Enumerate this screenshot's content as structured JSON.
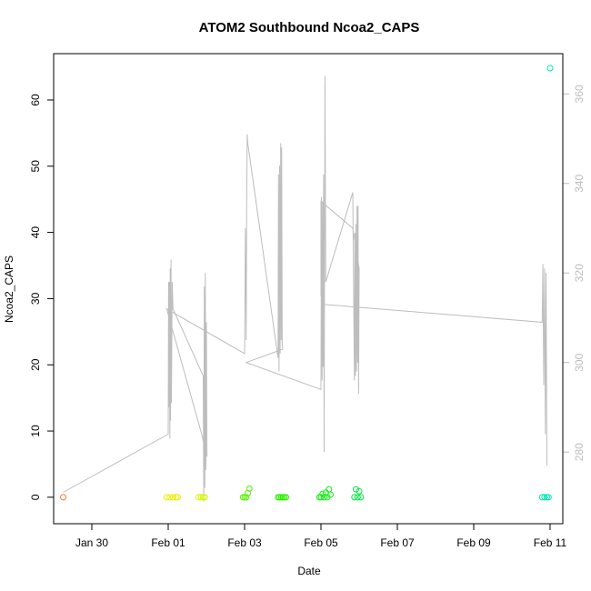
{
  "chart_data": {
    "type": "scatter",
    "title": "ATOM2 Southbound Ncoa2_CAPS",
    "xlabel": "Date",
    "ylabel": "Ncoa2_CAPS",
    "x_ticks": [
      "Jan 30",
      "Feb 01",
      "Feb 03",
      "Feb 05",
      "Feb 07",
      "Feb 09",
      "Feb 11"
    ],
    "y_ticks": [
      0,
      10,
      20,
      30,
      40,
      50,
      60
    ],
    "y2_ticks": [
      280,
      300,
      320,
      340,
      360
    ],
    "xlim": [
      "2024-01-29T00:00",
      "2024-02-11T08:00"
    ],
    "ylim": [
      -4,
      67
    ],
    "y2lim": [
      264,
      369
    ],
    "grid": false,
    "scatter_series": [
      {
        "color": "#f07a2a",
        "points": [
          [
            "2024-01-29T06:00",
            0
          ]
        ]
      },
      {
        "color": "#e8f000",
        "points": [
          [
            "2024-01-31T23:00",
            0
          ],
          [
            "2024-02-01T01:00",
            0
          ],
          [
            "2024-02-01T03:00",
            0
          ],
          [
            "2024-02-01T05:00",
            0
          ],
          [
            "2024-02-01T06:00",
            0
          ]
        ]
      },
      {
        "color": "#d8f500",
        "points": [
          [
            "2024-02-01T19:00",
            0
          ],
          [
            "2024-02-01T20:30",
            0
          ],
          [
            "2024-02-01T22:00",
            0
          ],
          [
            "2024-02-01T23:00",
            0
          ]
        ]
      },
      {
        "color": "#54f000",
        "points": [
          [
            "2024-02-02T23:00",
            0
          ],
          [
            "2024-02-03T00:00",
            0
          ],
          [
            "2024-02-03T01:00",
            0
          ],
          [
            "2024-02-03T02:00",
            0.6
          ],
          [
            "2024-02-03T03:00",
            1.3
          ]
        ]
      },
      {
        "color": "#2cf000",
        "points": [
          [
            "2024-02-03T21:00",
            0
          ],
          [
            "2024-02-03T22:00",
            0
          ],
          [
            "2024-02-03T23:00",
            0
          ],
          [
            "2024-02-04T00:00",
            0
          ],
          [
            "2024-02-04T01:00",
            0
          ],
          [
            "2024-02-04T02:00",
            0
          ]
        ]
      },
      {
        "color": "#10f010",
        "points": [
          [
            "2024-02-04T23:00",
            0
          ],
          [
            "2024-02-05T00:00",
            0
          ],
          [
            "2024-02-05T01:00",
            0.5
          ],
          [
            "2024-02-05T02:00",
            0
          ],
          [
            "2024-02-05T03:00",
            0.7
          ],
          [
            "2024-02-05T04:00",
            0
          ],
          [
            "2024-02-05T05:00",
            1.2
          ],
          [
            "2024-02-05T06:00",
            0.4
          ]
        ]
      },
      {
        "color": "#00e840",
        "points": [
          [
            "2024-02-05T21:00",
            0
          ],
          [
            "2024-02-05T22:00",
            1.2
          ],
          [
            "2024-02-05T23:00",
            0
          ],
          [
            "2024-02-06T00:00",
            0.9
          ],
          [
            "2024-02-06T01:00",
            0
          ]
        ]
      },
      {
        "color": "#00e8b0",
        "points": [
          [
            "2024-02-10T19:00",
            0
          ],
          [
            "2024-02-10T20:30",
            0
          ],
          [
            "2024-02-10T22:00",
            0
          ],
          [
            "2024-02-10T23:00",
            0
          ],
          [
            "2024-02-11T00:00",
            64.8
          ]
        ]
      }
    ],
    "secondary_line": {
      "color": "#bdbdbd",
      "axis": "right",
      "points": [
        [
          "2024-01-29T06:00",
          271
        ],
        [
          "2024-02-01T00:00",
          284
        ],
        [
          "2024-02-01T00:15",
          318
        ],
        [
          "2024-02-01T00:30",
          290
        ],
        [
          "2024-02-01T00:45",
          318
        ],
        [
          "2024-02-01T01:00",
          283
        ],
        [
          "2024-02-01T01:15",
          321
        ],
        [
          "2024-02-01T01:30",
          287
        ],
        [
          "2024-02-01T01:45",
          323
        ],
        [
          "2024-02-01T02:00",
          291
        ],
        [
          "2024-02-01T02:30",
          318
        ],
        [
          "2024-02-01T03:00",
          312
        ],
        [
          "2024-02-01T22:00",
          297
        ],
        [
          "2024-02-01T22:20",
          269
        ],
        [
          "2024-02-01T22:40",
          317
        ],
        [
          "2024-02-01T23:00",
          272
        ],
        [
          "2024-02-01T23:20",
          320
        ],
        [
          "2024-02-01T23:40",
          276
        ],
        [
          "2024-02-02T00:00",
          309
        ],
        [
          "2024-02-02T00:20",
          279
        ],
        [
          "2024-02-01T21:00",
          284
        ],
        [
          "2024-01-31T23:00",
          312
        ],
        [
          "2024-02-03T00:00",
          302
        ],
        [
          "2024-02-03T00:30",
          330
        ],
        [
          "2024-02-03T01:00",
          305
        ],
        [
          "2024-02-03T01:20",
          336
        ],
        [
          "2024-02-03T01:40",
          351
        ],
        [
          "2024-02-03T02:00",
          349
        ],
        [
          "2024-02-03T21:00",
          301
        ],
        [
          "2024-02-03T21:20",
          342
        ],
        [
          "2024-02-03T21:40",
          298
        ],
        [
          "2024-02-03T22:00",
          344
        ],
        [
          "2024-02-03T22:20",
          302
        ],
        [
          "2024-02-03T22:40",
          349
        ],
        [
          "2024-02-03T23:00",
          305
        ],
        [
          "2024-02-03T23:20",
          348
        ],
        [
          "2024-02-03T23:40",
          304
        ],
        [
          "2024-02-03T23:59",
          303
        ],
        [
          "2024-02-03T01:00",
          300
        ],
        [
          "2024-02-05T00:00",
          294
        ],
        [
          "2024-02-05T00:20",
          337
        ],
        [
          "2024-02-05T00:40",
          296
        ],
        [
          "2024-02-05T01:00",
          336
        ],
        [
          "2024-02-05T01:20",
          299
        ],
        [
          "2024-02-05T01:40",
          342
        ],
        [
          "2024-02-05T02:00",
          280
        ],
        [
          "2024-02-05T02:30",
          364
        ],
        [
          "2024-02-05T03:00",
          318
        ],
        [
          "2024-02-05T20:00",
          338
        ],
        [
          "2024-02-05T21:00",
          296
        ],
        [
          "2024-02-05T21:20",
          329
        ],
        [
          "2024-02-05T21:40",
          297
        ],
        [
          "2024-02-05T22:00",
          331
        ],
        [
          "2024-02-05T22:20",
          298
        ],
        [
          "2024-02-05T22:40",
          335
        ],
        [
          "2024-02-05T23:00",
          300
        ],
        [
          "2024-02-05T23:20",
          335
        ],
        [
          "2024-02-05T23:40",
          293
        ],
        [
          "2024-02-06T00:00",
          321
        ],
        [
          "2024-02-05T20:00",
          330
        ],
        [
          "2024-02-05T00:00",
          336
        ],
        [
          "2024-02-05T00:00",
          315
        ],
        [
          "2024-02-05T01:00",
          313
        ],
        [
          "2024-02-10T19:00",
          309
        ],
        [
          "2024-02-10T19:30",
          322
        ],
        [
          "2024-02-10T20:00",
          295
        ],
        [
          "2024-02-10T20:30",
          321
        ],
        [
          "2024-02-10T21:00",
          284
        ],
        [
          "2024-02-10T21:30",
          320
        ],
        [
          "2024-02-10T22:00",
          277
        ]
      ]
    }
  }
}
